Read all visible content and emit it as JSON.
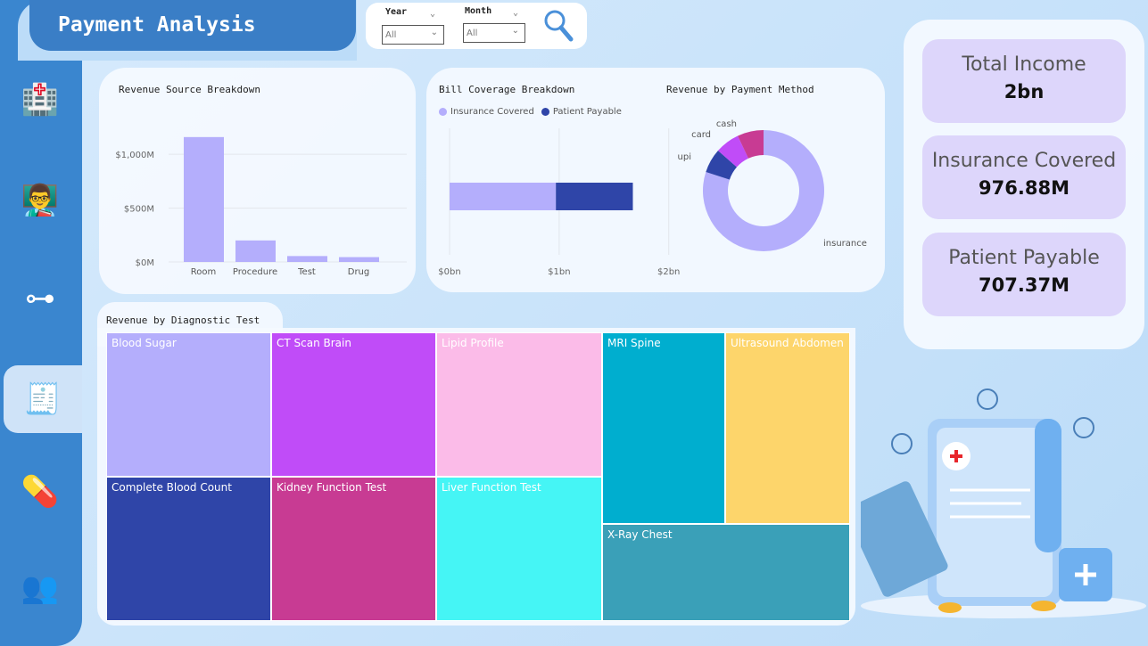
{
  "header": {
    "title": "Payment Analysis"
  },
  "filters": {
    "year_label": "Year",
    "year_value": "All",
    "month_label": "Month",
    "month_value": "All",
    "search_icon": "magnifier-icon"
  },
  "sidebar": {
    "items": [
      {
        "icon": "hospital-icon"
      },
      {
        "icon": "doctor-presentation-icon"
      },
      {
        "icon": "org-chart-icon"
      },
      {
        "icon": "invoice-icon",
        "active": true
      },
      {
        "icon": "medicine-chart-icon"
      },
      {
        "icon": "medical-staff-icon"
      }
    ]
  },
  "kpis": [
    {
      "label": "Total Income",
      "value": "2bn"
    },
    {
      "label": "Insurance Covered",
      "value": "976.88M"
    },
    {
      "label": "Patient Payable",
      "value": "707.37M"
    }
  ],
  "chart_data": [
    {
      "type": "bar",
      "title": "Revenue Source Breakdown",
      "categories": [
        "Room",
        "Procedure",
        "Test",
        "Drug"
      ],
      "values": [
        1160,
        200,
        55,
        45
      ],
      "unit": "M",
      "yticks": [
        "$0M",
        "$500M",
        "$1,000M"
      ],
      "ylim": [
        0,
        1200
      ],
      "color": "#b4aefc",
      "grid": true
    },
    {
      "type": "bar",
      "orientation": "horizontal-stacked",
      "title": "Bill Coverage Breakdown",
      "series": [
        {
          "name": "Insurance Covered",
          "values": [
            0.97688
          ],
          "color": "#b4aefc"
        },
        {
          "name": "Patient Payable",
          "values": [
            0.70737
          ],
          "color": "#2f45a8"
        }
      ],
      "xticks": [
        "$0bn",
        "$1bn",
        "$2bn"
      ],
      "xlim": [
        0,
        2
      ],
      "legend": "top-left"
    },
    {
      "type": "pie",
      "donut": true,
      "title": "Revenue by Payment Method",
      "categories": [
        "insurance",
        "upi",
        "card",
        "cash"
      ],
      "values": [
        80,
        6.5,
        6.5,
        7
      ],
      "colors": [
        "#b4aefc",
        "#2f45a8",
        "#c04cf8",
        "#c83b93"
      ]
    },
    {
      "type": "treemap",
      "title": "Revenue by Diagnostic Test",
      "categories": [
        {
          "name": "Blood Sugar",
          "color": "#b4aefc"
        },
        {
          "name": "Complete Blood Count",
          "color": "#2f45a8"
        },
        {
          "name": "CT Scan Brain",
          "color": "#c04cf8"
        },
        {
          "name": "Kidney Function Test",
          "color": "#c83b93"
        },
        {
          "name": "Lipid Profile",
          "color": "#fbbbe8"
        },
        {
          "name": "Liver Function Test",
          "color": "#45f5f5"
        },
        {
          "name": "MRI Spine",
          "color": "#00aecf"
        },
        {
          "name": "Ultrasound Abdomen",
          "color": "#fdd56b"
        },
        {
          "name": "X-Ray Chest",
          "color": "#3aa0b8"
        }
      ]
    }
  ]
}
